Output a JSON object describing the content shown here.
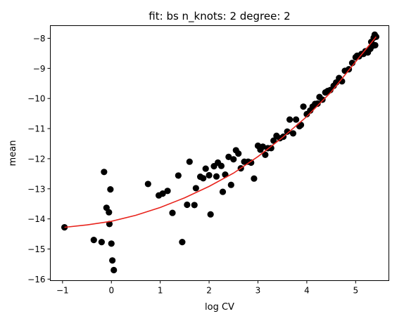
{
  "chart_data": {
    "type": "scatter",
    "title": "fit: bs n_knots: 2 degree: 2",
    "xlabel": "log CV",
    "ylabel": "mean",
    "xlim": [
      -1.25,
      5.68
    ],
    "ylim": [
      -16.05,
      -7.58
    ],
    "xticks": [
      -1,
      0,
      1,
      2,
      3,
      4,
      5
    ],
    "yticks": [
      -16,
      -15,
      -14,
      -13,
      -12,
      -11,
      -10,
      -9,
      -8
    ],
    "grid": false,
    "legend": "none",
    "colors": {
      "points": "#000000",
      "fit": "#e8231c"
    },
    "series": [
      {
        "kind": "scatter",
        "points": [
          [
            -0.96,
            -14.28
          ],
          [
            -0.36,
            -14.7
          ],
          [
            -0.2,
            -14.77
          ],
          [
            -0.15,
            -12.44
          ],
          [
            -0.1,
            -13.63
          ],
          [
            -0.05,
            -13.78
          ],
          [
            -0.04,
            -14.17
          ],
          [
            -0.02,
            -13.02
          ],
          [
            0.0,
            -14.82
          ],
          [
            0.02,
            -15.38
          ],
          [
            0.05,
            -15.7
          ],
          [
            0.75,
            -12.84
          ],
          [
            0.97,
            -13.22
          ],
          [
            1.05,
            -13.16
          ],
          [
            1.15,
            -13.07
          ],
          [
            1.25,
            -13.8
          ],
          [
            1.37,
            -12.56
          ],
          [
            1.45,
            -14.77
          ],
          [
            1.55,
            -13.53
          ],
          [
            1.6,
            -12.1
          ],
          [
            1.7,
            -13.54
          ],
          [
            1.73,
            -12.98
          ],
          [
            1.82,
            -12.6
          ],
          [
            1.88,
            -12.65
          ],
          [
            1.93,
            -12.33
          ],
          [
            2.0,
            -12.55
          ],
          [
            2.03,
            -13.85
          ],
          [
            2.1,
            -12.25
          ],
          [
            2.15,
            -12.59
          ],
          [
            2.18,
            -12.13
          ],
          [
            2.25,
            -12.24
          ],
          [
            2.28,
            -13.1
          ],
          [
            2.33,
            -12.53
          ],
          [
            2.4,
            -11.94
          ],
          [
            2.45,
            -12.87
          ],
          [
            2.5,
            -12.02
          ],
          [
            2.55,
            -11.72
          ],
          [
            2.6,
            -11.83
          ],
          [
            2.65,
            -12.32
          ],
          [
            2.72,
            -12.1
          ],
          [
            2.8,
            -12.1
          ],
          [
            2.86,
            -12.13
          ],
          [
            2.92,
            -12.66
          ],
          [
            3.0,
            -11.57
          ],
          [
            3.05,
            -11.7
          ],
          [
            3.1,
            -11.6
          ],
          [
            3.15,
            -11.87
          ],
          [
            3.2,
            -11.65
          ],
          [
            3.27,
            -11.65
          ],
          [
            3.32,
            -11.4
          ],
          [
            3.38,
            -11.24
          ],
          [
            3.45,
            -11.32
          ],
          [
            3.52,
            -11.27
          ],
          [
            3.6,
            -11.1
          ],
          [
            3.65,
            -10.7
          ],
          [
            3.72,
            -11.16
          ],
          [
            3.78,
            -10.7
          ],
          [
            3.85,
            -10.92
          ],
          [
            3.88,
            -10.88
          ],
          [
            3.93,
            -10.27
          ],
          [
            4.0,
            -10.52
          ],
          [
            4.07,
            -10.4
          ],
          [
            4.12,
            -10.27
          ],
          [
            4.17,
            -10.18
          ],
          [
            4.22,
            -10.17
          ],
          [
            4.26,
            -9.95
          ],
          [
            4.32,
            -10.04
          ],
          [
            4.38,
            -9.8
          ],
          [
            4.43,
            -9.75
          ],
          [
            4.48,
            -9.72
          ],
          [
            4.55,
            -9.58
          ],
          [
            4.6,
            -9.47
          ],
          [
            4.66,
            -9.32
          ],
          [
            4.72,
            -9.43
          ],
          [
            4.78,
            -9.08
          ],
          [
            4.86,
            -9.03
          ],
          [
            4.93,
            -8.82
          ],
          [
            5.0,
            -8.63
          ],
          [
            5.03,
            -8.58
          ],
          [
            5.07,
            -8.6
          ],
          [
            5.12,
            -8.52
          ],
          [
            5.16,
            -8.52
          ],
          [
            5.2,
            -8.43
          ],
          [
            5.25,
            -8.47
          ],
          [
            5.3,
            -8.35
          ],
          [
            5.32,
            -8.12
          ],
          [
            5.35,
            -8.25
          ],
          [
            5.37,
            -7.98
          ],
          [
            5.39,
            -7.88
          ],
          [
            5.4,
            -8.23
          ],
          [
            5.42,
            -7.95
          ]
        ]
      },
      {
        "kind": "line",
        "points": [
          [
            -0.96,
            -14.28
          ],
          [
            -0.5,
            -14.2
          ],
          [
            0.0,
            -14.08
          ],
          [
            0.5,
            -13.88
          ],
          [
            1.0,
            -13.62
          ],
          [
            1.5,
            -13.3
          ],
          [
            2.0,
            -12.92
          ],
          [
            2.5,
            -12.48
          ],
          [
            3.0,
            -11.93
          ],
          [
            3.5,
            -11.3
          ],
          [
            4.0,
            -10.6
          ],
          [
            4.5,
            -9.78
          ],
          [
            5.0,
            -8.78
          ],
          [
            5.42,
            -7.95
          ]
        ]
      }
    ]
  }
}
